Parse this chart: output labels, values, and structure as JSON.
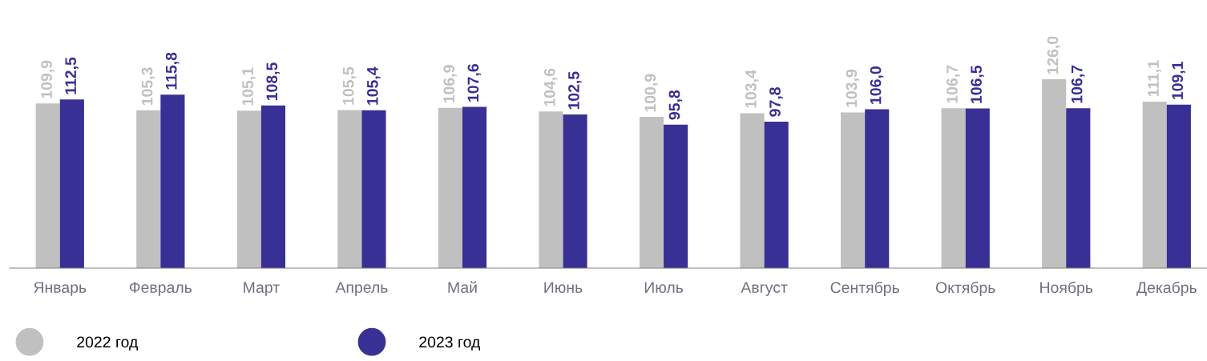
{
  "chart_data": {
    "type": "bar",
    "categories": [
      "Январь",
      "Февраль",
      "Март",
      "Апрель",
      "Май",
      "Июнь",
      "Июль",
      "Август",
      "Сентябрь",
      "Октябрь",
      "Ноябрь",
      "Декабрь"
    ],
    "series": [
      {
        "name": "2022 год",
        "color": "#c0c0c0",
        "values": [
          109.9,
          105.3,
          105.1,
          105.5,
          106.9,
          104.6,
          100.9,
          103.4,
          103.9,
          106.7,
          126.0,
          111.1
        ],
        "value_labels": [
          "109,9",
          "105,3",
          "105,1",
          "105,5",
          "106,9",
          "104,6",
          "100,9",
          "103,4",
          "103,9",
          "106,7",
          "126,0",
          "111,1"
        ]
      },
      {
        "name": "2023 год",
        "color": "#383094",
        "values": [
          112.5,
          115.8,
          108.5,
          105.4,
          107.6,
          102.5,
          95.8,
          97.8,
          106.0,
          106.5,
          106.7,
          109.1
        ],
        "value_labels": [
          "112,5",
          "115,8",
          "108,5",
          "105,4",
          "107,6",
          "102,5",
          "95,8",
          "97,8",
          "106,0",
          "106,5",
          "106,7",
          "109,1"
        ]
      }
    ],
    "relative": false,
    "legend": "bottom left",
    "grid": false,
    "marker": "circle"
  }
}
